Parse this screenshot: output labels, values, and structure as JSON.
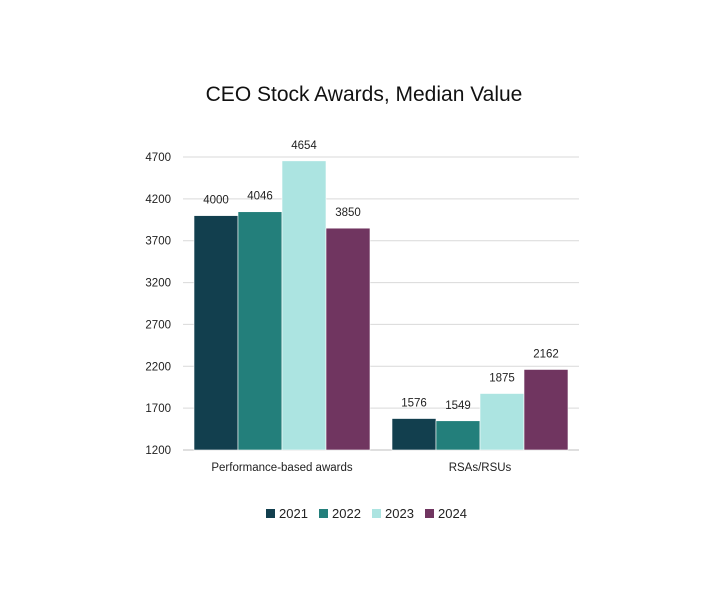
{
  "chart_data": {
    "type": "bar",
    "title": "CEO Stock Awards, Median Value",
    "xlabel": "",
    "ylabel": "",
    "categories": [
      "Performance-based awards",
      "RSAs/RSUs"
    ],
    "series": [
      {
        "name": "2021",
        "color": "#123f4e",
        "values": [
          4000,
          1576
        ]
      },
      {
        "name": "2022",
        "color": "#237f7b",
        "values": [
          4046,
          1549
        ]
      },
      {
        "name": "2023",
        "color": "#ace4e1",
        "values": [
          4654,
          1875
        ]
      },
      {
        "name": "2024",
        "color": "#703560",
        "values": [
          3850,
          2162
        ]
      }
    ],
    "ylim": [
      1200,
      4700
    ],
    "yticks": [
      1200,
      1700,
      2200,
      2700,
      3200,
      3700,
      4200,
      4700
    ],
    "grid": true,
    "legend_position": "bottom"
  }
}
